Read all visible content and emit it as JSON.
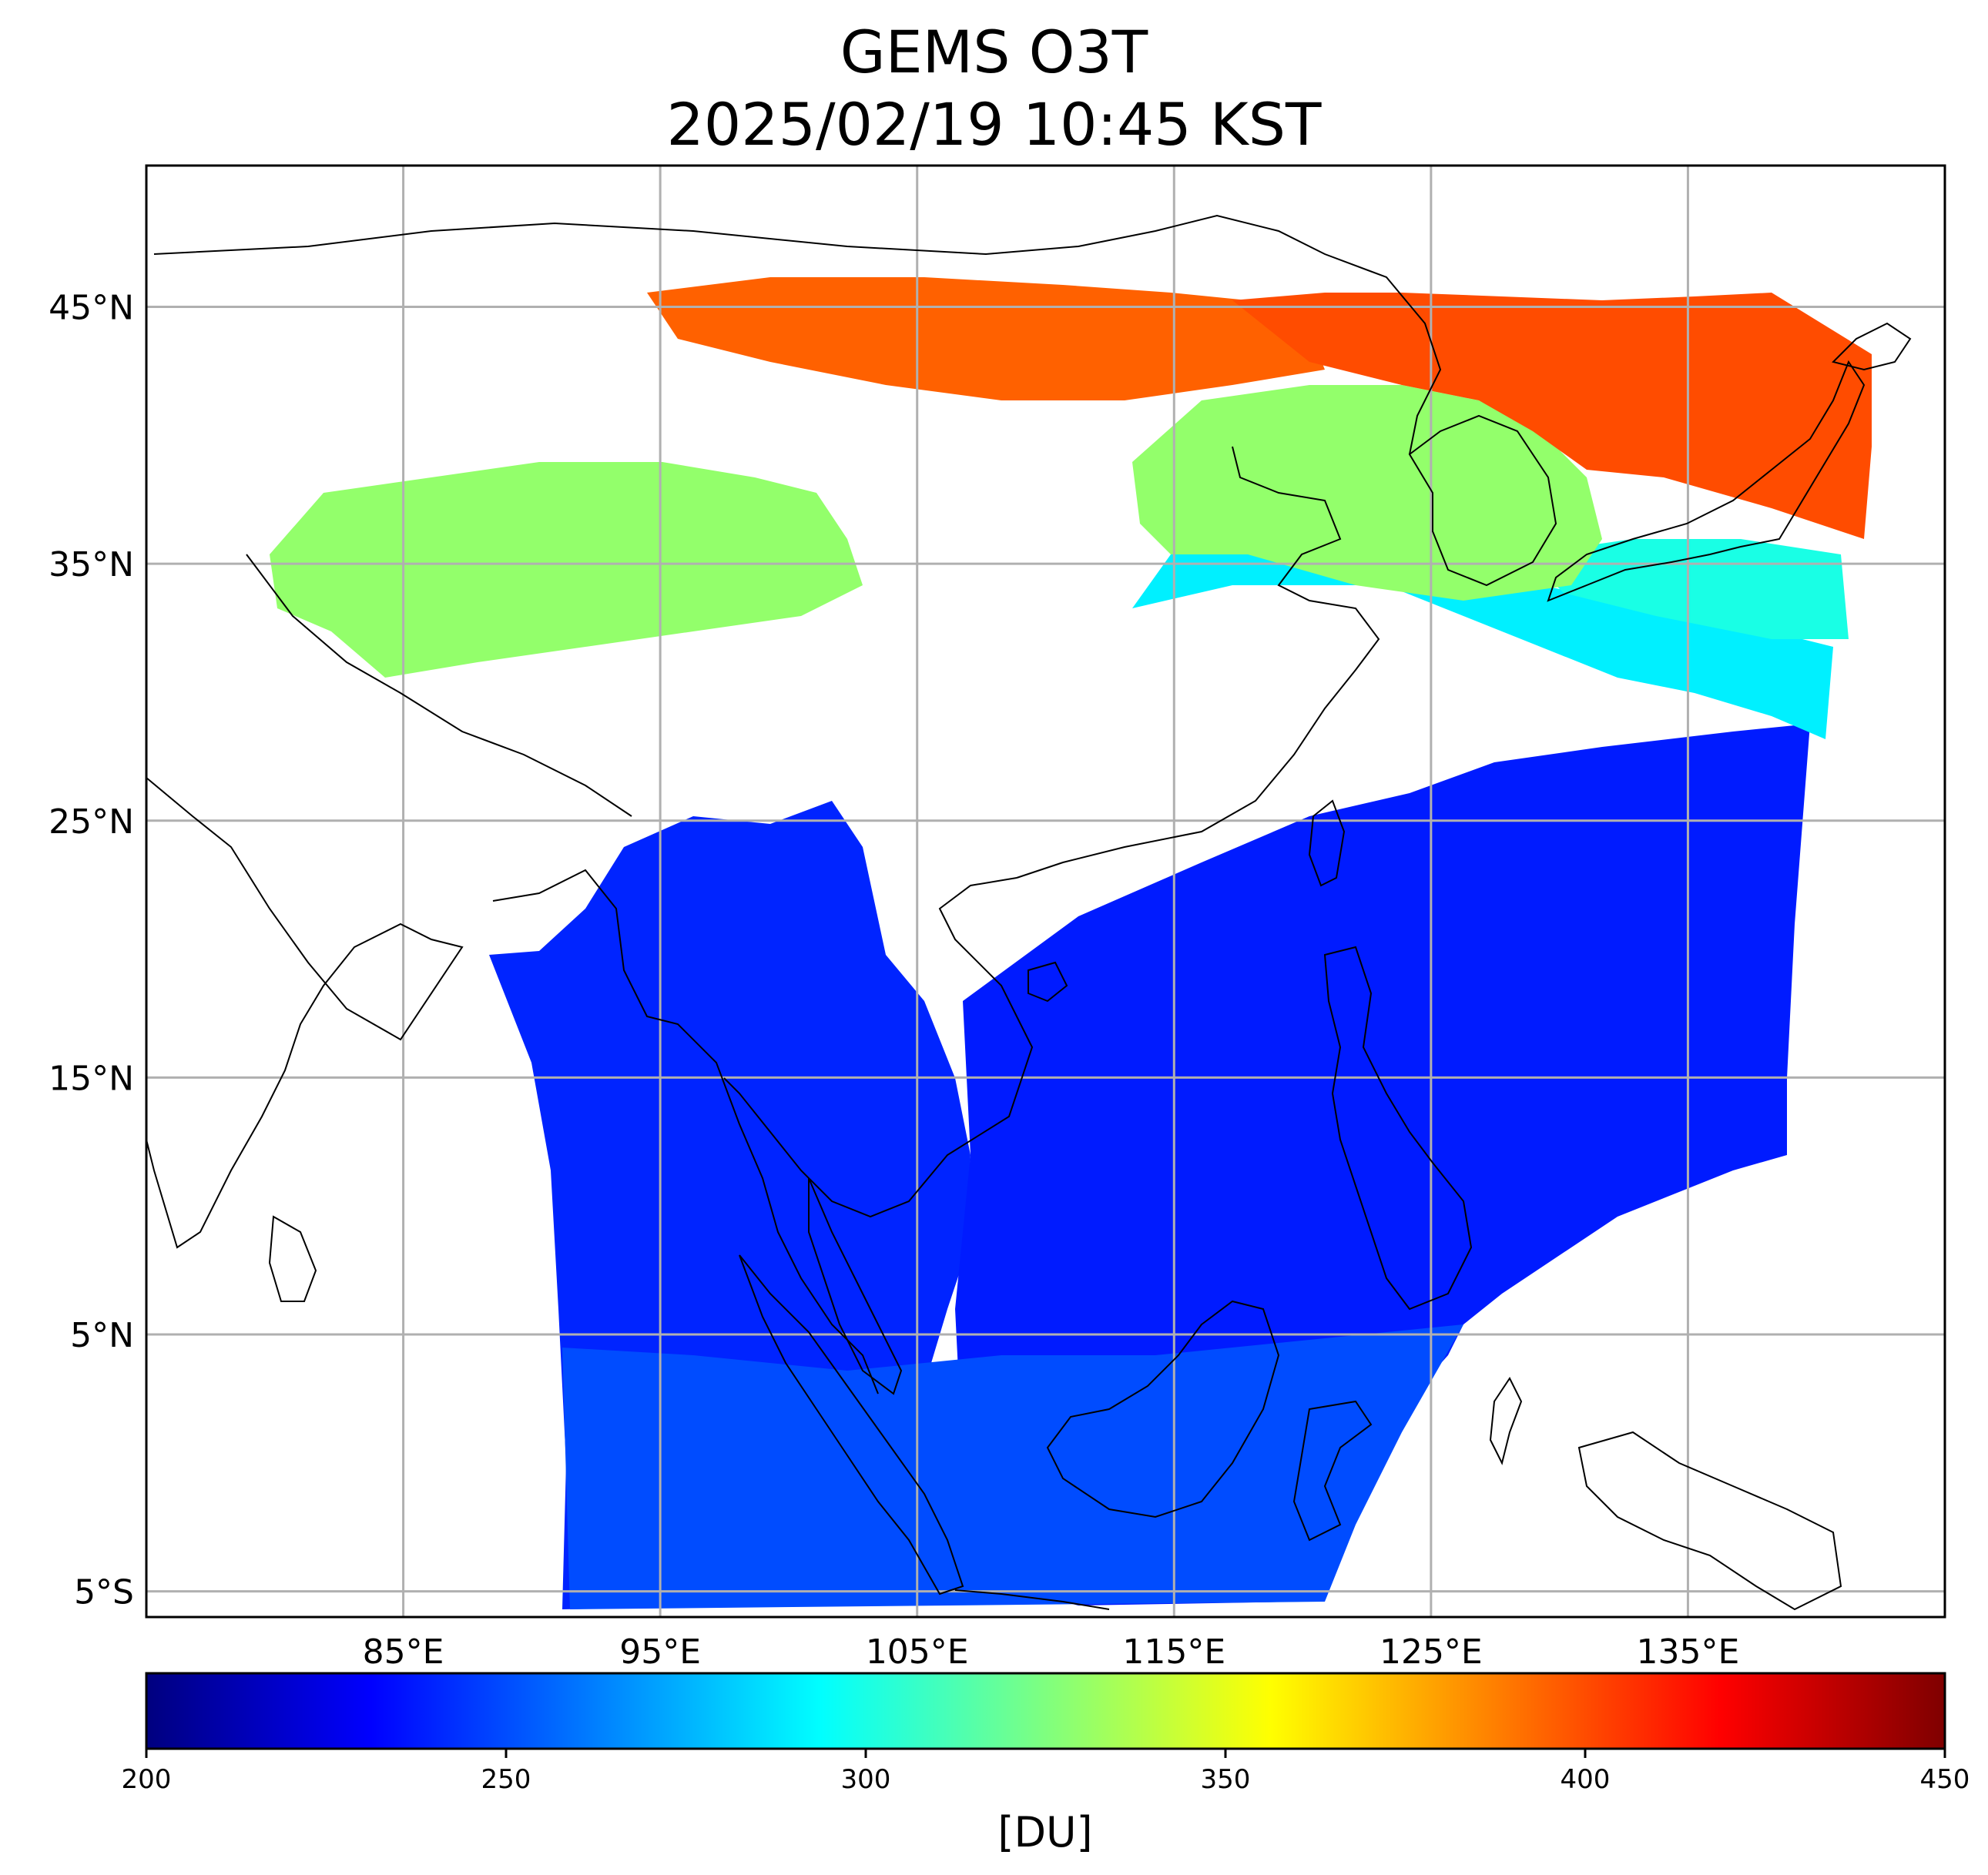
{
  "title": {
    "line1": "GEMS O3T",
    "line2": "2025/02/19 10:45 KST"
  },
  "map": {
    "extent": {
      "lon_min": 75,
      "lon_max": 145,
      "lat_min": -6,
      "lat_max": 50.5
    },
    "lat_ticks": [
      {
        "value": 45,
        "label": "45°N"
      },
      {
        "value": 35,
        "label": "35°N"
      },
      {
        "value": 25,
        "label": "25°N"
      },
      {
        "value": 15,
        "label": "15°N"
      },
      {
        "value": 5,
        "label": "5°N"
      },
      {
        "value": -5,
        "label": "5°S"
      }
    ],
    "lon_ticks": [
      {
        "value": 85,
        "label": "85°E"
      },
      {
        "value": 95,
        "label": "95°E"
      },
      {
        "value": 105,
        "label": "105°E"
      },
      {
        "value": 115,
        "label": "115°E"
      },
      {
        "value": 125,
        "label": "125°E"
      },
      {
        "value": 135,
        "label": "135°E"
      }
    ],
    "grid": true,
    "gridline_color": "#b0b0b0",
    "coastline_color": "#000000"
  },
  "colorbar": {
    "min": 200,
    "max": 450,
    "tick_labels": [
      "200",
      "250",
      "300",
      "350",
      "400",
      "450"
    ],
    "unit_label": "[DU]",
    "colormap": "jet",
    "stops": [
      "#00007f",
      "#0000ff",
      "#007fff",
      "#00ffff",
      "#7fff7f",
      "#ffff00",
      "#ff7f00",
      "#ff0000",
      "#7f0000"
    ]
  },
  "ozone_regions": [
    {
      "name": "north-band",
      "value": 395
    },
    {
      "name": "northeast-korea-japan",
      "value": 400
    },
    {
      "name": "north-china-plain",
      "value": 330
    },
    {
      "name": "east-china-sea",
      "value": 290
    },
    {
      "name": "japan-south",
      "value": 300
    },
    {
      "name": "tibet-west",
      "value": 330
    },
    {
      "name": "tropical-west",
      "value": 240
    },
    {
      "name": "tropical-east",
      "value": 238
    },
    {
      "name": "maritime-south",
      "value": 250
    }
  ]
}
